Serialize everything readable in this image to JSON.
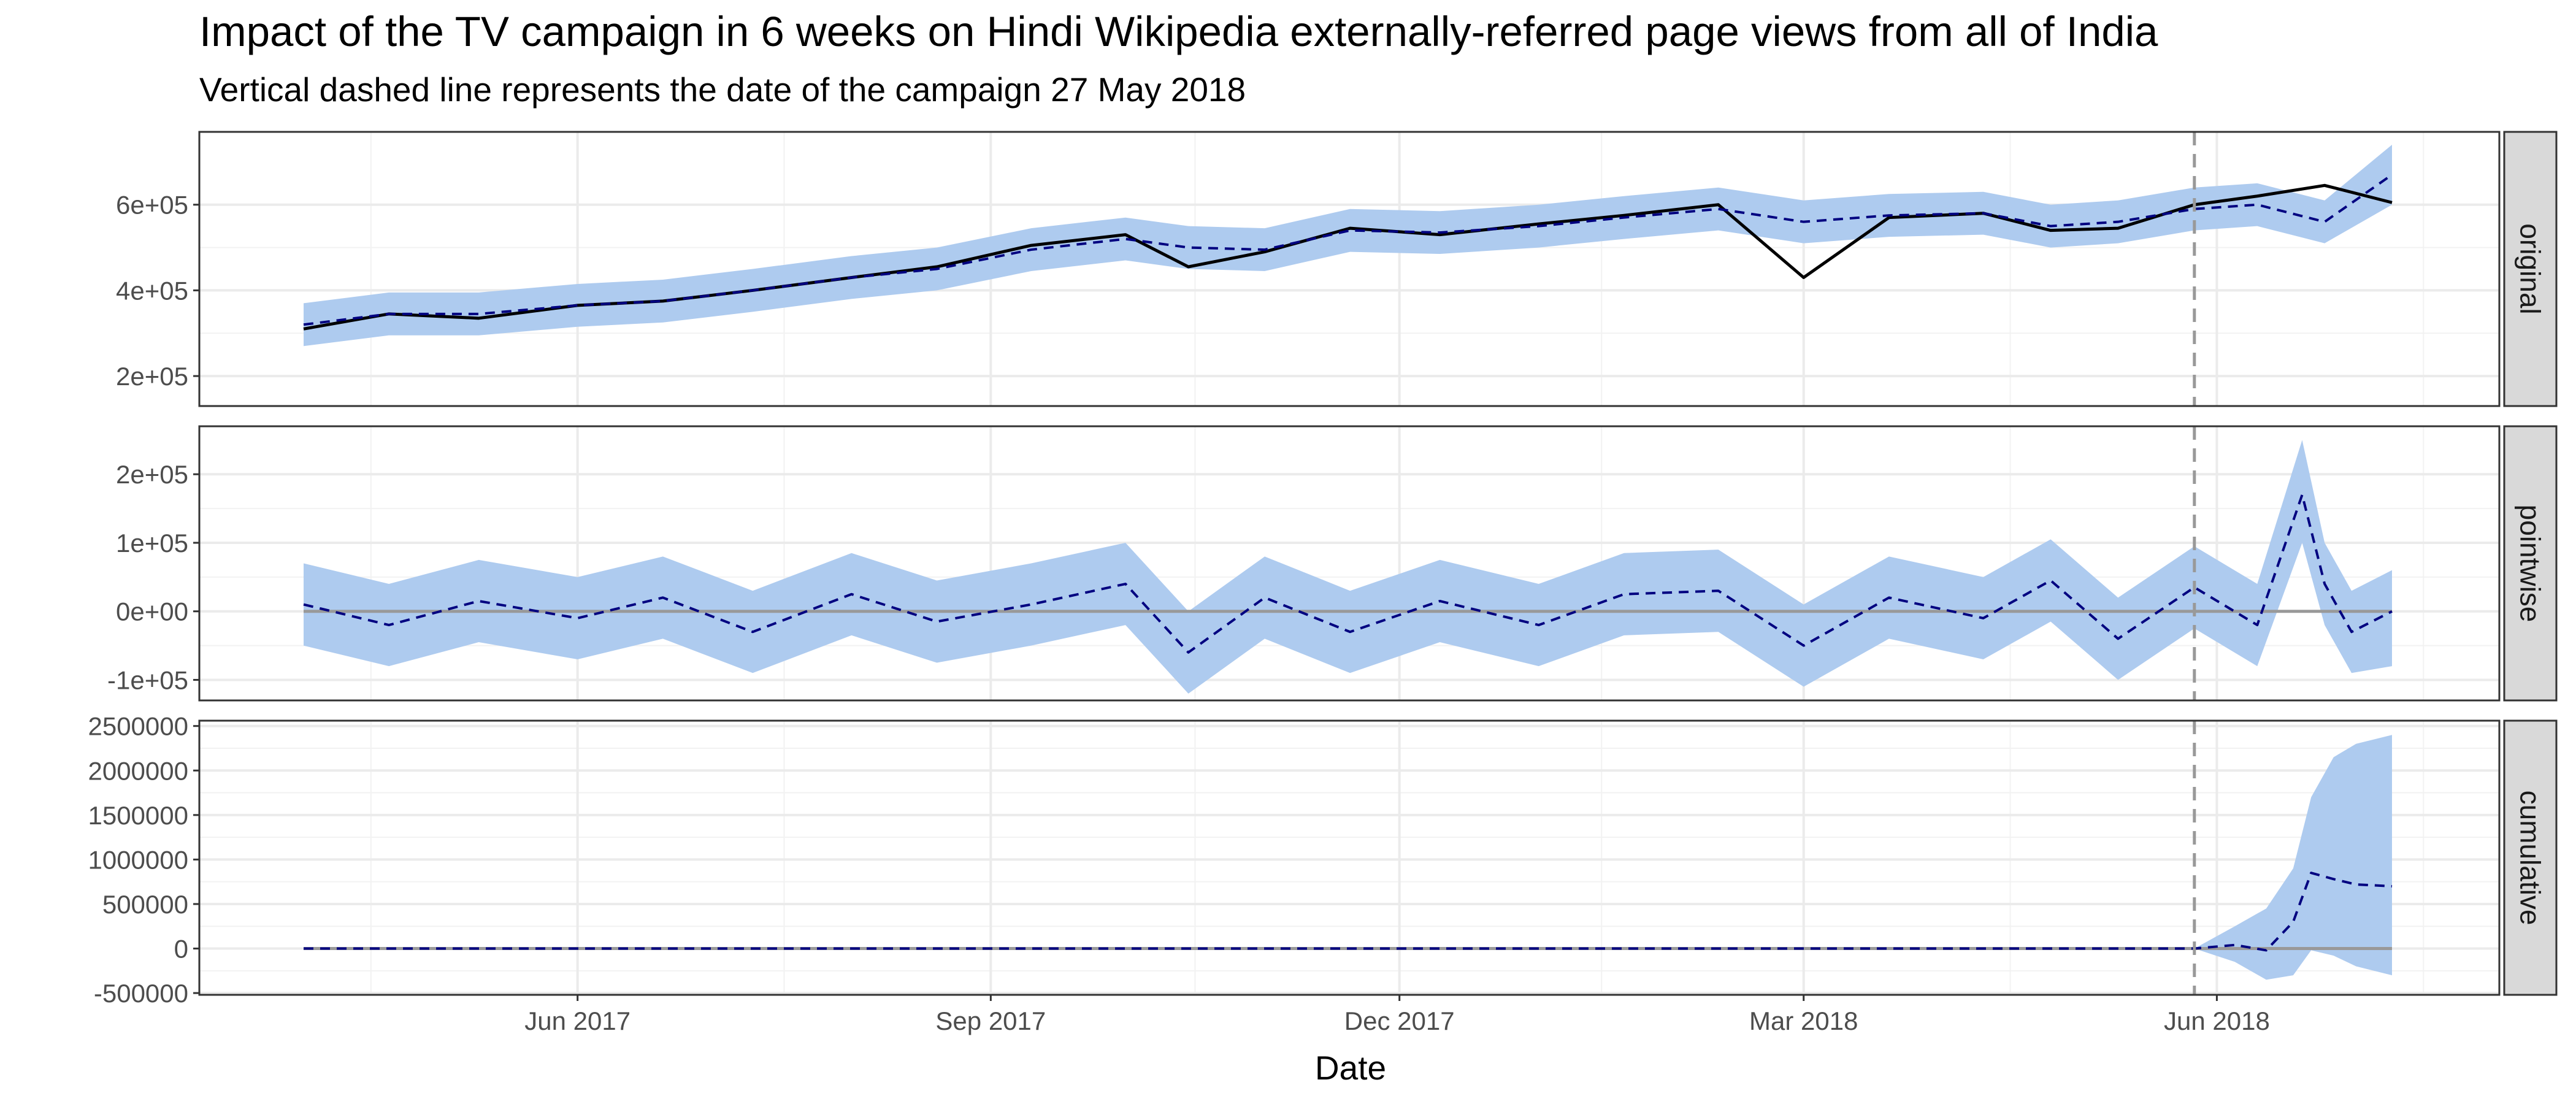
{
  "chart_data": {
    "type": "line",
    "title": "Impact of the TV campaign in 6 weeks on Hindi Wikipedia externally-referred page views from all of India",
    "subtitle": "Vertical dashed line represents the date of the campaign 27 May 2018",
    "xlabel": "Date",
    "x_tick_labels": [
      "Jun 2017",
      "Sep 2017",
      "Dec 2017",
      "Mar 2018",
      "Jun 2018"
    ],
    "x_ticks": [
      "2017-06-01",
      "2017-09-01",
      "2017-12-01",
      "2018-03-01",
      "2018-06-01"
    ],
    "x_range": [
      "2017-04-01",
      "2018-07-10"
    ],
    "campaign_date": "2018-05-27",
    "grid": true,
    "colors": {
      "band": "#aecbef",
      "actual": "#000000",
      "predicted": "#000080",
      "zero": "#999999",
      "campaign": "#999999",
      "strip_bg": "#d9d9d9"
    },
    "panels": [
      {
        "label": "original",
        "ylim": [
          130000,
          770000
        ],
        "y_ticks": [
          200000,
          400000,
          600000
        ],
        "y_tick_labels": [
          "2e+05",
          "4e+05",
          "6e+05"
        ],
        "series": [
          {
            "role": "actual",
            "x": [
              "2017-04-01",
              "2017-04-20",
              "2017-05-10",
              "2017-06-01",
              "2017-06-20",
              "2017-07-10",
              "2017-08-01",
              "2017-08-20",
              "2017-09-10",
              "2017-10-01",
              "2017-10-15",
              "2017-11-01",
              "2017-11-20",
              "2017-12-10",
              "2018-01-01",
              "2018-01-20",
              "2018-02-10",
              "2018-03-01",
              "2018-03-20",
              "2018-04-10",
              "2018-04-25",
              "2018-05-10",
              "2018-05-27",
              "2018-06-10",
              "2018-06-25",
              "2018-07-10"
            ],
            "values": [
              310000,
              345000,
              335000,
              365000,
              375000,
              400000,
              430000,
              455000,
              505000,
              530000,
              455000,
              490000,
              545000,
              530000,
              555000,
              575000,
              600000,
              430000,
              570000,
              580000,
              540000,
              545000,
              600000,
              620000,
              645000,
              605000
            ]
          },
          {
            "role": "predicted",
            "x": [
              "2017-04-01",
              "2017-04-20",
              "2017-05-10",
              "2017-06-01",
              "2017-06-20",
              "2017-07-10",
              "2017-08-01",
              "2017-08-20",
              "2017-09-10",
              "2017-10-01",
              "2017-10-15",
              "2017-11-01",
              "2017-11-20",
              "2017-12-10",
              "2018-01-01",
              "2018-01-20",
              "2018-02-10",
              "2018-03-01",
              "2018-03-20",
              "2018-04-10",
              "2018-04-25",
              "2018-05-10",
              "2018-05-27",
              "2018-06-10",
              "2018-06-25",
              "2018-07-10"
            ],
            "values": [
              320000,
              345000,
              345000,
              365000,
              375000,
              400000,
              430000,
              450000,
              495000,
              520000,
              500000,
              495000,
              540000,
              535000,
              550000,
              570000,
              590000,
              560000,
              575000,
              580000,
              550000,
              560000,
              590000,
              600000,
              560000,
              670000
            ]
          }
        ],
        "band": {
          "x": [
            "2017-04-01",
            "2017-04-20",
            "2017-05-10",
            "2017-06-01",
            "2017-06-20",
            "2017-07-10",
            "2017-08-01",
            "2017-08-20",
            "2017-09-10",
            "2017-10-01",
            "2017-10-15",
            "2017-11-01",
            "2017-11-20",
            "2017-12-10",
            "2018-01-01",
            "2018-01-20",
            "2018-02-10",
            "2018-03-01",
            "2018-03-20",
            "2018-04-10",
            "2018-04-25",
            "2018-05-10",
            "2018-05-27",
            "2018-06-10",
            "2018-06-25",
            "2018-07-10"
          ],
          "lower": [
            270000,
            295000,
            295000,
            315000,
            325000,
            350000,
            380000,
            400000,
            445000,
            470000,
            450000,
            445000,
            490000,
            485000,
            500000,
            520000,
            540000,
            510000,
            525000,
            530000,
            500000,
            510000,
            540000,
            550000,
            510000,
            600000
          ],
          "upper": [
            370000,
            395000,
            395000,
            415000,
            425000,
            450000,
            480000,
            500000,
            545000,
            570000,
            550000,
            545000,
            590000,
            585000,
            600000,
            620000,
            640000,
            610000,
            625000,
            630000,
            600000,
            610000,
            640000,
            650000,
            610000,
            740000
          ]
        }
      },
      {
        "label": "pointwise",
        "ylim": [
          -130000,
          270000
        ],
        "y_ticks": [
          -100000,
          0,
          100000,
          200000
        ],
        "y_tick_labels": [
          "-1e+05",
          "0e+00",
          "1e+05",
          "2e+05"
        ],
        "zero_line": true,
        "series": [
          {
            "role": "predicted",
            "x": [
              "2017-04-01",
              "2017-04-20",
              "2017-05-10",
              "2017-06-01",
              "2017-06-20",
              "2017-07-10",
              "2017-08-01",
              "2017-08-20",
              "2017-09-10",
              "2017-10-01",
              "2017-10-15",
              "2017-11-01",
              "2017-11-20",
              "2017-12-10",
              "2018-01-01",
              "2018-01-20",
              "2018-02-10",
              "2018-03-01",
              "2018-03-20",
              "2018-04-10",
              "2018-04-25",
              "2018-05-10",
              "2018-05-27",
              "2018-06-10",
              "2018-06-20",
              "2018-06-25",
              "2018-07-01",
              "2018-07-10"
            ],
            "values": [
              10000,
              -20000,
              15000,
              -10000,
              20000,
              -30000,
              25000,
              -15000,
              10000,
              40000,
              -60000,
              20000,
              -30000,
              15000,
              -20000,
              25000,
              30000,
              -50000,
              20000,
              -10000,
              45000,
              -40000,
              35000,
              -20000,
              170000,
              40000,
              -30000,
              0
            ]
          }
        ],
        "band": {
          "x": [
            "2017-04-01",
            "2017-04-20",
            "2017-05-10",
            "2017-06-01",
            "2017-06-20",
            "2017-07-10",
            "2017-08-01",
            "2017-08-20",
            "2017-09-10",
            "2017-10-01",
            "2017-10-15",
            "2017-11-01",
            "2017-11-20",
            "2017-12-10",
            "2018-01-01",
            "2018-01-20",
            "2018-02-10",
            "2018-03-01",
            "2018-03-20",
            "2018-04-10",
            "2018-04-25",
            "2018-05-10",
            "2018-05-27",
            "2018-06-10",
            "2018-06-20",
            "2018-06-25",
            "2018-07-01",
            "2018-07-10"
          ],
          "lower": [
            -50000,
            -80000,
            -45000,
            -70000,
            -40000,
            -90000,
            -35000,
            -75000,
            -50000,
            -20000,
            -120000,
            -40000,
            -90000,
            -45000,
            -80000,
            -35000,
            -30000,
            -110000,
            -40000,
            -70000,
            -15000,
            -100000,
            -25000,
            -80000,
            100000,
            -20000,
            -90000,
            -80000
          ],
          "upper": [
            70000,
            40000,
            75000,
            50000,
            80000,
            30000,
            85000,
            45000,
            70000,
            100000,
            0,
            80000,
            30000,
            75000,
            40000,
            85000,
            90000,
            10000,
            80000,
            50000,
            105000,
            20000,
            95000,
            40000,
            250000,
            100000,
            30000,
            60000
          ]
        }
      },
      {
        "label": "cumulative",
        "ylim": [
          -520000,
          2560000
        ],
        "y_ticks": [
          -500000,
          0,
          500000,
          1000000,
          1500000,
          2000000,
          2500000
        ],
        "y_tick_labels": [
          "-500000",
          "0",
          "500000",
          "1000000",
          "1500000",
          "2000000",
          "2500000"
        ],
        "zero_line": true,
        "series": [
          {
            "role": "predicted",
            "x": [
              "2017-04-01",
              "2018-05-27",
              "2018-06-05",
              "2018-06-12",
              "2018-06-18",
              "2018-06-22",
              "2018-06-27",
              "2018-07-02",
              "2018-07-10"
            ],
            "values": [
              0,
              0,
              40000,
              -20000,
              300000,
              850000,
              780000,
              720000,
              700000
            ]
          }
        ],
        "band": {
          "x": [
            "2017-04-01",
            "2018-05-27",
            "2018-06-05",
            "2018-06-12",
            "2018-06-18",
            "2018-06-22",
            "2018-06-27",
            "2018-07-02",
            "2018-07-10"
          ],
          "lower": [
            0,
            0,
            -150000,
            -350000,
            -300000,
            -20000,
            -80000,
            -200000,
            -300000
          ],
          "upper": [
            0,
            0,
            250000,
            450000,
            900000,
            1700000,
            2150000,
            2300000,
            2400000
          ]
        }
      }
    ]
  }
}
